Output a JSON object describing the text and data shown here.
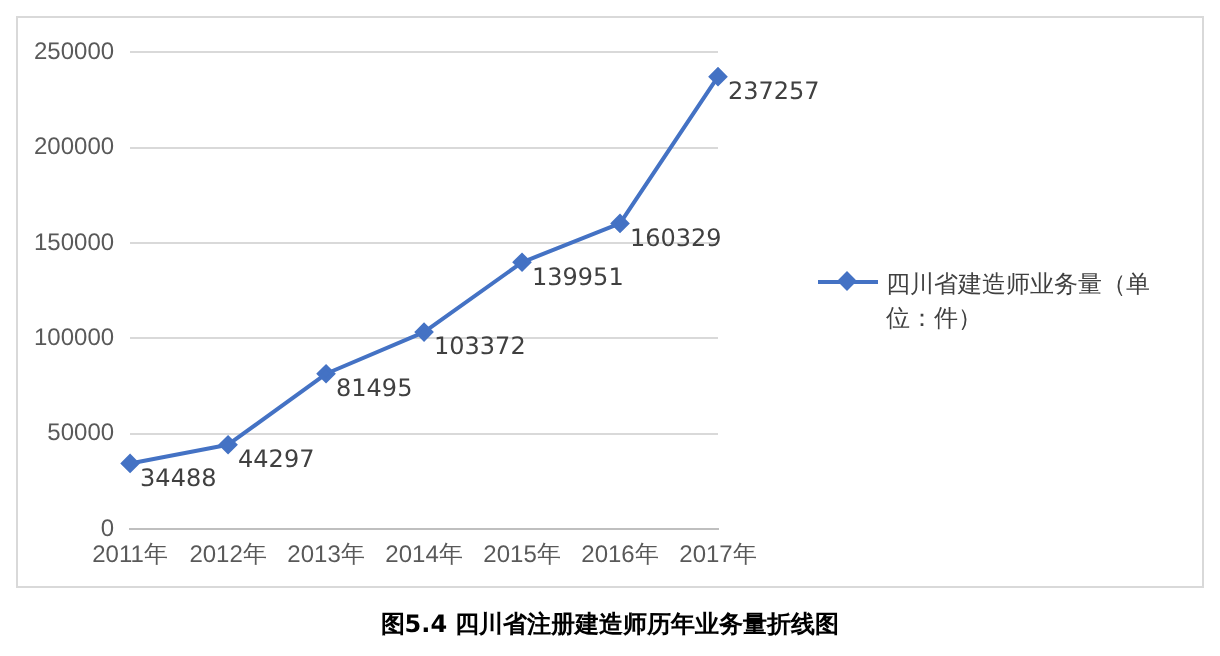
{
  "chart_data": {
    "type": "line",
    "title": "图5.4 四川省注册建造师历年业务量折线图",
    "categories": [
      "2011年",
      "2012年",
      "2013年",
      "2014年",
      "2015年",
      "2016年",
      "2017年"
    ],
    "series": [
      {
        "name": "四川省建造师业务量（单位：件）",
        "color": "#4472c4",
        "values": [
          34488,
          44297,
          81495,
          103372,
          139951,
          160329,
          237257
        ]
      }
    ],
    "ylim": [
      0,
      250000
    ],
    "yticks": [
      0,
      50000,
      100000,
      150000,
      200000,
      250000
    ],
    "grid": "y",
    "legend": "right",
    "marker": "diamond",
    "data_labels": true
  }
}
